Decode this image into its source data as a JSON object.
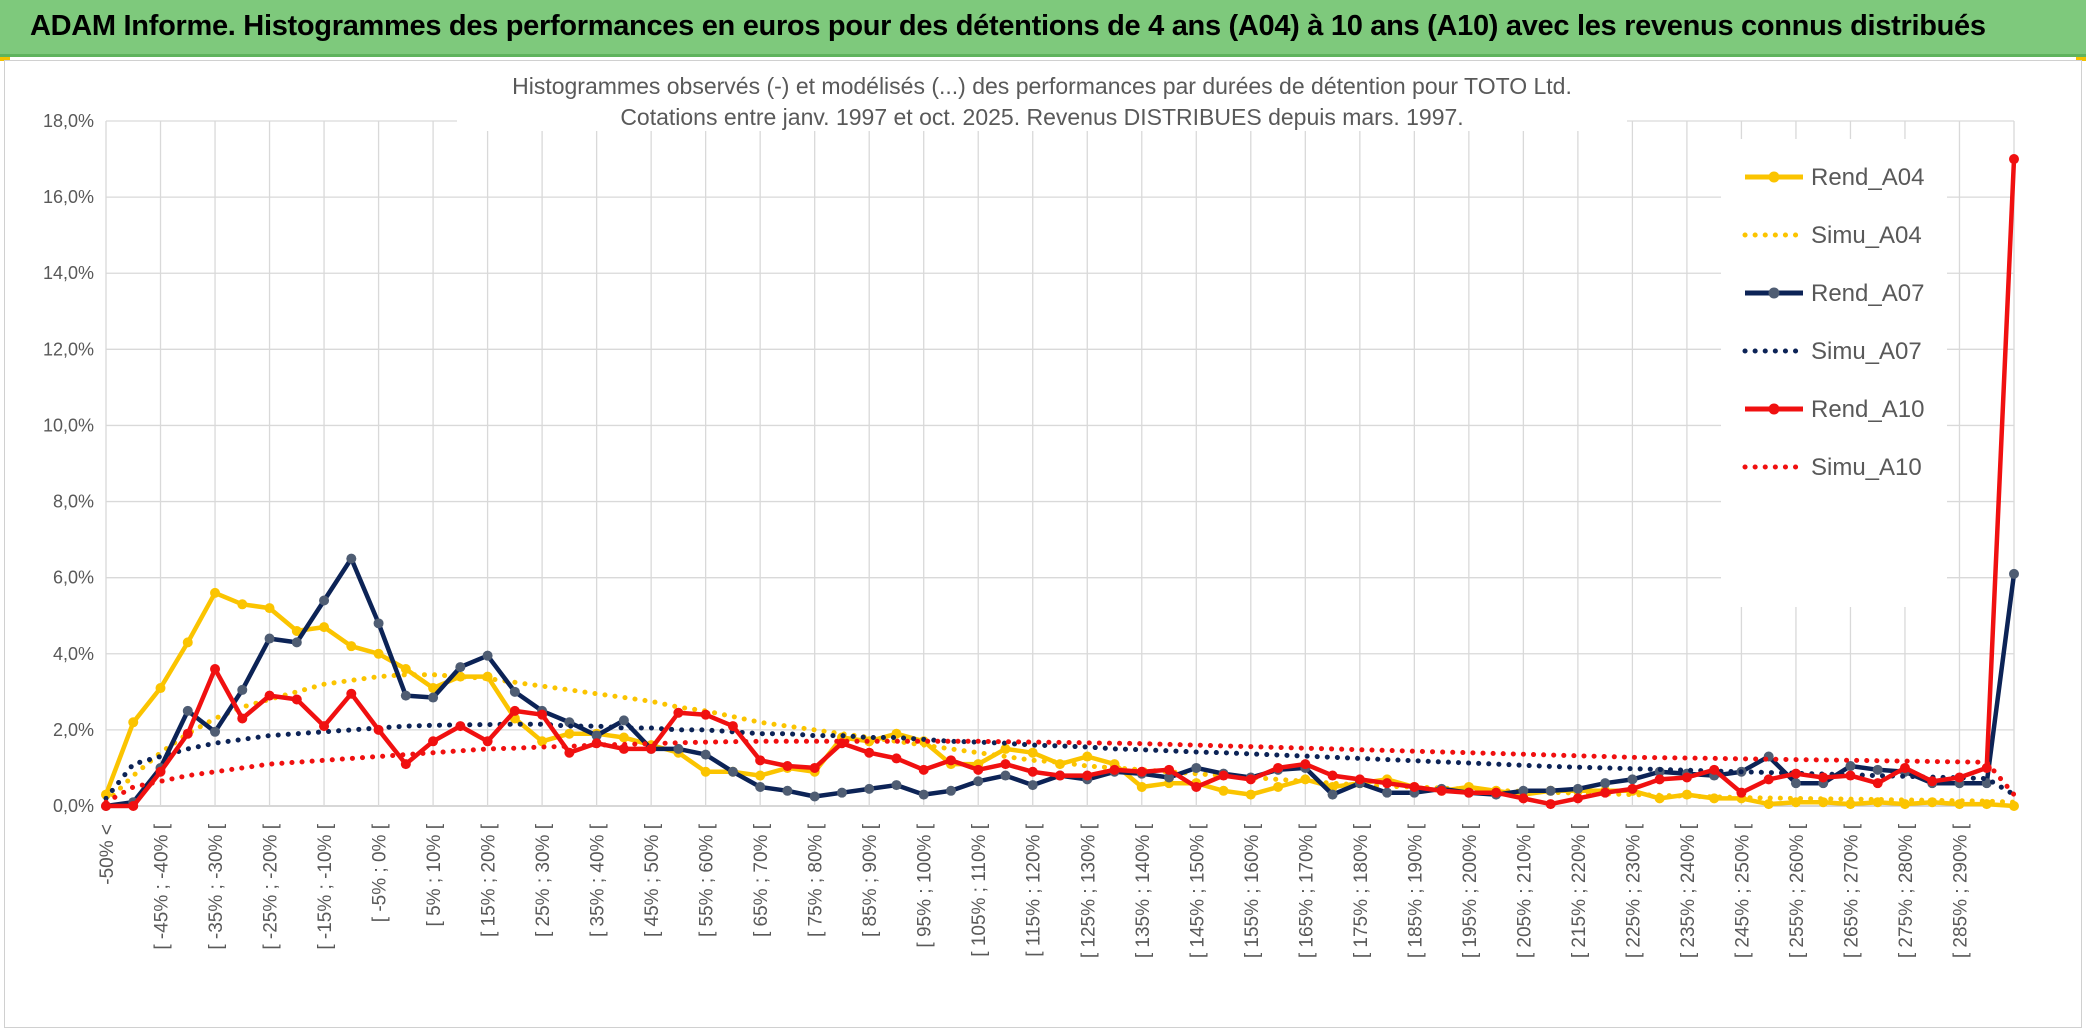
{
  "header": {
    "title": "ADAM Informe. Histogrammes des performances en euros pour des détentions de 4 ans (A04) à 10 ans (A10) avec les revenus connus distribués"
  },
  "colors": {
    "banner": "#7ec97c",
    "A04": "#fbc400",
    "A07": "#0c2356",
    "A07_marker": "#4f5d73",
    "A10": "#f01010"
  },
  "chart_data": {
    "type": "line",
    "title": "Histogrammes observés (-) et modélisés (...) des performances par durées de détention pour TOTO Ltd.",
    "subtitle": "Cotations entre janv. 1997 et oct. 2025. Revenus DISTRIBUES depuis mars. 1997.",
    "xlabel": "",
    "ylabel": "",
    "ylim": [
      0,
      18
    ],
    "yticks": [
      "0,0%",
      "2,0%",
      "4,0%",
      "6,0%",
      "8,0%",
      "10,0%",
      "12,0%",
      "14,0%",
      "16,0%",
      "18,0%"
    ],
    "grid": true,
    "legend_position": "right",
    "categories": [
      "-50% <",
      "[ -50% ; -45% [",
      "[ -45% ; -40% [",
      "[ -40% ; -35% [",
      "[ -35% ; -30% [",
      "[ -30% ; -25% [",
      "[ -25% ; -20% [",
      "[ -20% ; -15% [",
      "[ -15% ; -10% [",
      "[ -10% ; -5% [",
      "[ -5% ; 0% [",
      "[ 0% ; 5% [",
      "[ 5% ; 10% [",
      "[ 10% ; 15% [",
      "[ 15% ; 20% [",
      "[ 20% ; 25% [",
      "[ 25% ; 30% [",
      "[ 30% ; 35% [",
      "[ 35% ; 40% [",
      "[ 40% ; 45% [",
      "[ 45% ; 50% [",
      "[ 50% ; 55% [",
      "[ 55% ; 60% [",
      "[ 60% ; 65% [",
      "[ 65% ; 70% [",
      "[ 70% ; 75% [",
      "[ 75% ; 80% [",
      "[ 80% ; 85% [",
      "[ 85% ; 90% [",
      "[ 90% ; 95% [",
      "[ 95% ; 100% [",
      "[ 100% ; 105% [",
      "[ 105% ; 110% [",
      "[ 110% ; 115% [",
      "[ 115% ; 120% [",
      "[ 120% ; 125% [",
      "[ 125% ; 130% [",
      "[ 130% ; 135% [",
      "[ 135% ; 140% [",
      "[ 140% ; 145% [",
      "[ 145% ; 150% [",
      "[ 150% ; 155% [",
      "[ 155% ; 160% [",
      "[ 160% ; 165% [",
      "[ 165% ; 170% [",
      "[ 170% ; 175% [",
      "[ 175% ; 180% [",
      "[ 180% ; 185% [",
      "[ 185% ; 190% [",
      "[ 190% ; 195% [",
      "[ 195% ; 200% [",
      "[ 200% ; 205% [",
      "[ 205% ; 210% [",
      "[ 210% ; 215% [",
      "[ 215% ; 220% [",
      "[ 220% ; 225% [",
      "[ 225% ; 230% [",
      "[ 230% ; 235% [",
      "[ 235% ; 240% [",
      "[ 240% ; 245% [",
      "[ 245% ; 250% [",
      "[ 250% ; 255% [",
      "[ 255% ; 260% [",
      "[ 260% ; 265% [",
      "[ 265% ; 270% [",
      "[ 270% ; 275% [",
      "[ 275% ; 280% [",
      "[ 280% ; 285% [",
      "[ 285% ; 290% [",
      "[ 290% ; 295% [",
      "> 295%"
    ],
    "visible_labels": [
      "-50% <",
      "[ -45% ; -40% [",
      "[ -35% ; -30% [",
      "[ -25% ; -20% [",
      "[ -15% ; -10% [",
      "[ -5% ; 0% [",
      "[ 5% ; 10% [",
      "[ 15% ; 20% [",
      "[ 25% ; 30% [",
      "[ 35% ; 40% [",
      "[ 45% ; 50% [",
      "[ 55% ; 60% [",
      "[ 65% ; 70% [",
      "[ 75% ; 80% [",
      "[ 85% ; 90% [",
      "[ 95% ; 100% [",
      "[ 105% ; 110% [",
      "[ 115% ; 120% [",
      "[ 125% ; 130% [",
      "[ 135% ; 140% [",
      "[ 145% ; 150% [",
      "[ 155% ; 160% [",
      "[ 165% ; 170% [",
      "[ 175% ; 180% [",
      "[ 185% ; 190% [",
      "[ 195% ; 200% [",
      "[ 205% ; 210% [",
      "[ 215% ; 220% [",
      "[ 225% ; 230% [",
      "[ 235% ; 240% [",
      "[ 245% ; 250% [",
      "[ 255% ; 260% [",
      "[ 265% ; 270% [",
      "[ 275% ; 280% [",
      "[ 285% ; 290% ["
    ],
    "series": [
      {
        "name": "Rend_A04",
        "style": "solid",
        "color": "#fbc400",
        "values": [
          0.3,
          2.2,
          3.1,
          4.3,
          5.6,
          5.3,
          5.2,
          4.6,
          4.7,
          4.2,
          4.0,
          3.6,
          3.1,
          3.4,
          3.4,
          2.3,
          1.7,
          1.9,
          1.9,
          1.8,
          1.6,
          1.4,
          0.9,
          0.9,
          0.8,
          1.0,
          0.9,
          1.8,
          1.7,
          1.9,
          1.7,
          1.1,
          1.1,
          1.5,
          1.4,
          1.1,
          1.3,
          1.1,
          0.5,
          0.6,
          0.6,
          0.4,
          0.3,
          0.5,
          0.7,
          0.5,
          0.6,
          0.7,
          0.5,
          0.4,
          0.5,
          0.4,
          0.3,
          0.4,
          0.4,
          0.4,
          0.4,
          0.2,
          0.3,
          0.2,
          0.2,
          0.05,
          0.1,
          0.1,
          0.05,
          0.1,
          0.05,
          0.1,
          0.05,
          0.05,
          0.0
        ]
      },
      {
        "name": "Simu_A04",
        "style": "dotted",
        "color": "#fbc400",
        "values": [
          0.1,
          0.8,
          1.4,
          1.9,
          2.3,
          2.6,
          2.8,
          3.0,
          3.2,
          3.3,
          3.4,
          3.45,
          3.45,
          3.4,
          3.35,
          3.25,
          3.15,
          3.05,
          2.95,
          2.85,
          2.75,
          2.6,
          2.5,
          2.35,
          2.2,
          2.1,
          2.0,
          1.9,
          1.8,
          1.7,
          1.6,
          1.5,
          1.4,
          1.3,
          1.2,
          1.15,
          1.05,
          1.0,
          0.95,
          0.9,
          0.85,
          0.8,
          0.75,
          0.7,
          0.65,
          0.6,
          0.55,
          0.52,
          0.5,
          0.47,
          0.44,
          0.41,
          0.38,
          0.36,
          0.34,
          0.32,
          0.3,
          0.28,
          0.26,
          0.24,
          0.22,
          0.21,
          0.2,
          0.19,
          0.18,
          0.17,
          0.16,
          0.15,
          0.14,
          0.13,
          0.1
        ]
      },
      {
        "name": "Rend_A07",
        "style": "solid",
        "color": "#0c2356",
        "values": [
          0.0,
          0.1,
          1.0,
          2.5,
          1.95,
          3.05,
          4.4,
          4.3,
          5.4,
          6.5,
          4.8,
          2.9,
          2.85,
          3.65,
          3.95,
          3.0,
          2.5,
          2.2,
          1.85,
          2.25,
          1.5,
          1.5,
          1.35,
          0.9,
          0.5,
          0.4,
          0.25,
          0.35,
          0.45,
          0.55,
          0.3,
          0.4,
          0.65,
          0.8,
          0.55,
          0.8,
          0.7,
          0.9,
          0.85,
          0.75,
          1.0,
          0.85,
          0.75,
          0.95,
          1.0,
          0.3,
          0.6,
          0.35,
          0.35,
          0.45,
          0.35,
          0.3,
          0.4,
          0.4,
          0.45,
          0.6,
          0.7,
          0.9,
          0.85,
          0.8,
          0.9,
          1.3,
          0.6,
          0.6,
          1.05,
          0.95,
          0.9,
          0.6,
          0.6,
          0.6,
          6.1
        ]
      },
      {
        "name": "Simu_A07",
        "style": "dotted",
        "color": "#0c2356",
        "values": [
          0.2,
          1.1,
          1.3,
          1.5,
          1.65,
          1.75,
          1.85,
          1.9,
          1.95,
          2.0,
          2.05,
          2.1,
          2.12,
          2.13,
          2.14,
          2.15,
          2.15,
          2.1,
          2.1,
          2.05,
          2.05,
          2.0,
          2.0,
          1.95,
          1.9,
          1.9,
          1.85,
          1.85,
          1.8,
          1.8,
          1.75,
          1.7,
          1.68,
          1.65,
          1.6,
          1.58,
          1.55,
          1.5,
          1.48,
          1.45,
          1.42,
          1.4,
          1.37,
          1.34,
          1.31,
          1.28,
          1.25,
          1.22,
          1.19,
          1.16,
          1.13,
          1.1,
          1.07,
          1.04,
          1.02,
          1.0,
          0.98,
          0.96,
          0.94,
          0.92,
          0.9,
          0.88,
          0.86,
          0.84,
          0.82,
          0.8,
          0.78,
          0.76,
          0.74,
          0.72,
          0.3
        ]
      },
      {
        "name": "Rend_A10",
        "style": "solid",
        "color": "#f01010",
        "values": [
          0.0,
          0.0,
          0.9,
          1.9,
          3.6,
          2.3,
          2.9,
          2.8,
          2.1,
          2.95,
          2.0,
          1.1,
          1.7,
          2.1,
          1.7,
          2.5,
          2.4,
          1.4,
          1.65,
          1.5,
          1.5,
          2.45,
          2.4,
          2.1,
          1.2,
          1.05,
          1.0,
          1.65,
          1.4,
          1.25,
          0.95,
          1.2,
          0.95,
          1.1,
          0.9,
          0.8,
          0.8,
          0.95,
          0.9,
          0.95,
          0.5,
          0.8,
          0.7,
          1.0,
          1.1,
          0.8,
          0.7,
          0.6,
          0.5,
          0.4,
          0.35,
          0.35,
          0.2,
          0.05,
          0.2,
          0.35,
          0.45,
          0.7,
          0.75,
          0.95,
          0.35,
          0.7,
          0.85,
          0.75,
          0.8,
          0.6,
          1.0,
          0.65,
          0.75,
          1.0,
          17.0
        ]
      },
      {
        "name": "Simu_A10",
        "style": "dotted",
        "color": "#f01010",
        "values": [
          0.1,
          0.5,
          0.65,
          0.8,
          0.9,
          1.0,
          1.1,
          1.15,
          1.2,
          1.25,
          1.3,
          1.35,
          1.4,
          1.45,
          1.5,
          1.52,
          1.55,
          1.57,
          1.6,
          1.62,
          1.64,
          1.66,
          1.68,
          1.69,
          1.7,
          1.7,
          1.7,
          1.7,
          1.7,
          1.7,
          1.7,
          1.7,
          1.7,
          1.69,
          1.68,
          1.67,
          1.66,
          1.65,
          1.64,
          1.62,
          1.6,
          1.58,
          1.56,
          1.54,
          1.52,
          1.5,
          1.48,
          1.46,
          1.44,
          1.42,
          1.4,
          1.38,
          1.36,
          1.34,
          1.32,
          1.3,
          1.28,
          1.27,
          1.26,
          1.25,
          1.24,
          1.23,
          1.22,
          1.21,
          1.2,
          1.19,
          1.18,
          1.17,
          1.16,
          1.15,
          0.3
        ]
      }
    ]
  }
}
